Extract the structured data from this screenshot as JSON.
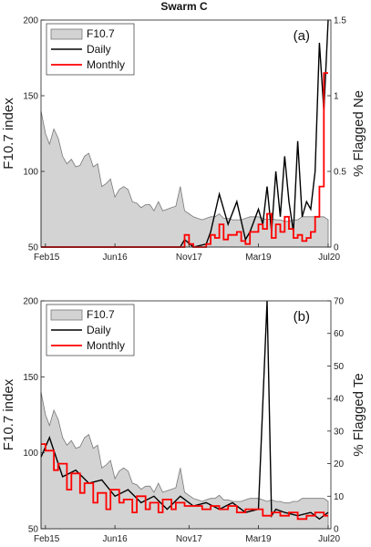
{
  "figure": {
    "title": "Swarm C"
  },
  "colors": {
    "f107_fill": "#d3d3d3",
    "f107_line": "#777777",
    "daily": "#000000",
    "monthly": "#ff0000"
  },
  "chart_data": [
    {
      "type": "area",
      "panel_label": "(a)",
      "left_axis": {
        "label": "F10.7 index",
        "ylim": [
          50,
          200
        ],
        "ticks": [
          "50",
          "100",
          "150",
          "200"
        ]
      },
      "right_axis": {
        "label": "% Flagged Ne",
        "ylim": [
          0,
          1.5
        ],
        "ticks": [
          "0",
          "0.5",
          "1",
          "1.5"
        ]
      },
      "x_axis": {
        "range": [
          "2015-01-01",
          "2020-07-20"
        ],
        "ticks": [
          "Feb15",
          "Jun16",
          "Nov17",
          "Mar19",
          "Jul20"
        ]
      },
      "legend": {
        "placement": "top-left",
        "entries": [
          "F10.7",
          "Daily",
          "Monthly"
        ]
      },
      "series": [
        {
          "name": "F10.7",
          "axis": "left",
          "style": "filled-area",
          "x": [
            "2015-01",
            "2015-02",
            "2015-03",
            "2015-04",
            "2015-05",
            "2015-06",
            "2015-07",
            "2015-08",
            "2015-09",
            "2015-10",
            "2015-11",
            "2015-12",
            "2016-01",
            "2016-02",
            "2016-03",
            "2016-04",
            "2016-05",
            "2016-06",
            "2016-07",
            "2016-08",
            "2016-09",
            "2016-10",
            "2016-11",
            "2016-12",
            "2017-01",
            "2017-02",
            "2017-03",
            "2017-04",
            "2017-05",
            "2017-06",
            "2017-07",
            "2017-08",
            "2017-09",
            "2017-10",
            "2017-11",
            "2017-12",
            "2018-01",
            "2018-02",
            "2018-03",
            "2018-04",
            "2018-05",
            "2018-06",
            "2018-07",
            "2018-08",
            "2018-09",
            "2018-10",
            "2018-11",
            "2018-12",
            "2019-01",
            "2019-02",
            "2019-03",
            "2019-04",
            "2019-05",
            "2019-06",
            "2019-07",
            "2019-08",
            "2019-09",
            "2019-10",
            "2019-11",
            "2019-12",
            "2020-01",
            "2020-02",
            "2020-03",
            "2020-04",
            "2020-05",
            "2020-06",
            "2020-07"
          ],
          "values": [
            140,
            125,
            118,
            128,
            122,
            110,
            105,
            108,
            103,
            104,
            110,
            112,
            103,
            105,
            90,
            92,
            95,
            83,
            88,
            90,
            88,
            80,
            79,
            76,
            78,
            78,
            74,
            80,
            74,
            75,
            76,
            77,
            90,
            74,
            72,
            70,
            69,
            68,
            69,
            70,
            70,
            72,
            69,
            69,
            68,
            68,
            68,
            69,
            70,
            70,
            70,
            69,
            68,
            69,
            68,
            68,
            67,
            67,
            68,
            68,
            70,
            70,
            70,
            70,
            70,
            70,
            68
          ]
        },
        {
          "name": "Daily",
          "axis": "right",
          "style": "line",
          "x": [
            "2015-01",
            "2015-06",
            "2016-01",
            "2016-06",
            "2017-01",
            "2017-06",
            "2017-09",
            "2017-10",
            "2017-12",
            "2018-03",
            "2018-04",
            "2018-06",
            "2018-08",
            "2018-10",
            "2018-12",
            "2019-01",
            "2019-03",
            "2019-04",
            "2019-05",
            "2019-06",
            "2019-07",
            "2019-08",
            "2019-09",
            "2019-10",
            "2019-11",
            "2019-12",
            "2020-01",
            "2020-02",
            "2020-03",
            "2020-04",
            "2020-05",
            "2020-06",
            "2020-07"
          ],
          "values": [
            0,
            0,
            0,
            0,
            0,
            0,
            0,
            0.05,
            0,
            0.02,
            0.1,
            0.35,
            0.15,
            0.3,
            0.05,
            0.1,
            0.25,
            0.15,
            0.4,
            0.1,
            0.5,
            0.2,
            0.6,
            0.3,
            0.1,
            0.7,
            0.2,
            0.3,
            0.25,
            0.5,
            1.35,
            0.9,
            1.5
          ]
        },
        {
          "name": "Monthly",
          "axis": "right",
          "style": "step",
          "x": [
            "2015-01",
            "2015-06",
            "2016-01",
            "2016-06",
            "2017-01",
            "2017-06",
            "2017-09",
            "2017-10",
            "2017-11",
            "2017-12",
            "2018-03",
            "2018-04",
            "2018-05",
            "2018-06",
            "2018-07",
            "2018-08",
            "2018-10",
            "2018-11",
            "2018-12",
            "2019-01",
            "2019-03",
            "2019-04",
            "2019-05",
            "2019-06",
            "2019-07",
            "2019-08",
            "2019-09",
            "2019-10",
            "2019-11",
            "2019-12",
            "2020-01",
            "2020-02",
            "2020-03",
            "2020-04",
            "2020-05",
            "2020-06",
            "2020-07"
          ],
          "values": [
            0,
            0,
            0,
            0,
            0,
            0,
            0,
            0.08,
            0.02,
            0,
            0.02,
            0.08,
            0.06,
            0.15,
            0.05,
            0.08,
            0.1,
            0.04,
            0.02,
            0.1,
            0.15,
            0.12,
            0.22,
            0.06,
            0.15,
            0.1,
            0.2,
            0.12,
            0.06,
            0.08,
            0.04,
            0.06,
            0.1,
            0.2,
            0.4,
            1.15,
            1.15
          ]
        }
      ]
    },
    {
      "type": "area",
      "panel_label": "(b)",
      "left_axis": {
        "label": "F10.7 index",
        "ylim": [
          50,
          200
        ],
        "ticks": [
          "50",
          "100",
          "150",
          "200"
        ]
      },
      "right_axis": {
        "label": "% Flagged Te",
        "ylim": [
          0,
          70
        ],
        "ticks": [
          "0",
          "10",
          "20",
          "30",
          "40",
          "50",
          "60",
          "70"
        ]
      },
      "x_axis": {
        "range": [
          "2015-01-01",
          "2020-07-20"
        ],
        "ticks": [
          "Feb15",
          "Jun16",
          "Nov17",
          "Mar19",
          "Jul20"
        ]
      },
      "legend": {
        "placement": "top-left",
        "entries": [
          "F10.7",
          "Daily",
          "Monthly"
        ]
      },
      "series": [
        {
          "name": "F10.7",
          "axis": "left",
          "style": "filled-area",
          "x": [
            "2015-01",
            "2015-02",
            "2015-03",
            "2015-04",
            "2015-05",
            "2015-06",
            "2015-07",
            "2015-08",
            "2015-09",
            "2015-10",
            "2015-11",
            "2015-12",
            "2016-01",
            "2016-02",
            "2016-03",
            "2016-04",
            "2016-05",
            "2016-06",
            "2016-07",
            "2016-08",
            "2016-09",
            "2016-10",
            "2016-11",
            "2016-12",
            "2017-01",
            "2017-02",
            "2017-03",
            "2017-04",
            "2017-05",
            "2017-06",
            "2017-07",
            "2017-08",
            "2017-09",
            "2017-10",
            "2017-11",
            "2017-12",
            "2018-01",
            "2018-02",
            "2018-03",
            "2018-04",
            "2018-05",
            "2018-06",
            "2018-07",
            "2018-08",
            "2018-09",
            "2018-10",
            "2018-11",
            "2018-12",
            "2019-01",
            "2019-02",
            "2019-03",
            "2019-04",
            "2019-05",
            "2019-06",
            "2019-07",
            "2019-08",
            "2019-09",
            "2019-10",
            "2019-11",
            "2019-12",
            "2020-01",
            "2020-02",
            "2020-03",
            "2020-04",
            "2020-05",
            "2020-06",
            "2020-07"
          ],
          "values": [
            140,
            125,
            118,
            128,
            122,
            110,
            105,
            108,
            103,
            104,
            110,
            112,
            103,
            105,
            90,
            92,
            95,
            83,
            88,
            90,
            88,
            80,
            79,
            76,
            78,
            78,
            74,
            80,
            74,
            75,
            76,
            77,
            90,
            74,
            72,
            70,
            69,
            68,
            69,
            70,
            70,
            72,
            69,
            69,
            68,
            68,
            68,
            69,
            70,
            70,
            70,
            69,
            68,
            69,
            68,
            68,
            67,
            67,
            68,
            68,
            70,
            70,
            70,
            70,
            70,
            70,
            68
          ]
        },
        {
          "name": "Daily",
          "axis": "right",
          "style": "line",
          "x": [
            "2015-01",
            "2015-03",
            "2015-06",
            "2015-09",
            "2015-12",
            "2016-03",
            "2016-06",
            "2016-09",
            "2016-12",
            "2017-03",
            "2017-06",
            "2017-09",
            "2017-12",
            "2018-03",
            "2018-06",
            "2018-09",
            "2018-12",
            "2019-03",
            "2019-05",
            "2019-06",
            "2019-07",
            "2019-09",
            "2019-12",
            "2020-03",
            "2020-05",
            "2020-07"
          ],
          "values": [
            22,
            28,
            16,
            18,
            14,
            15,
            10,
            12,
            8,
            10,
            6,
            10,
            7,
            8,
            6,
            8,
            5,
            6,
            70,
            4,
            6,
            5,
            4,
            5,
            3,
            5
          ]
        },
        {
          "name": "Monthly",
          "axis": "right",
          "style": "step",
          "x": [
            "2015-01",
            "2015-02",
            "2015-04",
            "2015-05",
            "2015-07",
            "2015-08",
            "2015-10",
            "2015-11",
            "2016-01",
            "2016-02",
            "2016-04",
            "2016-05",
            "2016-07",
            "2016-08",
            "2016-10",
            "2016-11",
            "2017-01",
            "2017-02",
            "2017-04",
            "2017-05",
            "2017-07",
            "2017-08",
            "2017-10",
            "2017-12",
            "2018-02",
            "2018-04",
            "2018-06",
            "2018-08",
            "2018-10",
            "2018-12",
            "2019-02",
            "2019-04",
            "2019-06",
            "2019-08",
            "2019-10",
            "2019-12",
            "2020-02",
            "2020-04",
            "2020-06",
            "2020-07"
          ],
          "values": [
            26,
            24,
            18,
            20,
            12,
            17,
            11,
            14,
            8,
            11,
            6,
            12,
            8,
            9,
            5,
            10,
            6,
            8,
            5,
            9,
            6,
            8,
            7,
            7,
            6,
            7,
            6,
            7,
            5,
            6,
            6,
            4,
            5,
            4,
            5,
            3,
            4,
            5,
            4,
            4
          ]
        }
      ]
    }
  ]
}
